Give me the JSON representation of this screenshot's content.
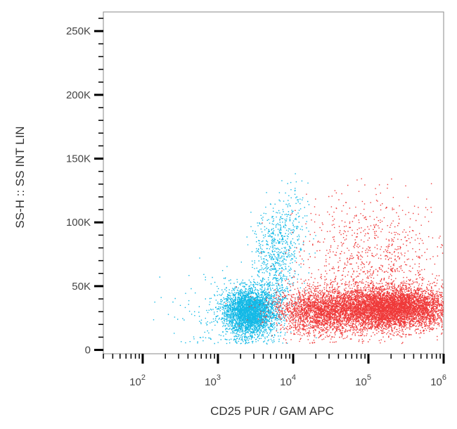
{
  "chart_data": {
    "type": "scatter",
    "title": "",
    "xlabel": "CD25 PUR / GAM APC",
    "ylabel": "SS-H :: SS INT LIN",
    "x_scale": "log",
    "xlim": [
      30,
      1000000
    ],
    "ylim": [
      -3000,
      265000
    ],
    "x_ticks": [
      {
        "value": 100,
        "base": "10",
        "exp": "2"
      },
      {
        "value": 1000,
        "base": "10",
        "exp": "3"
      },
      {
        "value": 10000,
        "base": "10",
        "exp": "4"
      },
      {
        "value": 100000,
        "base": "10",
        "exp": "5"
      },
      {
        "value": 1000000,
        "base": "10",
        "exp": "6"
      }
    ],
    "y_ticks": [
      {
        "value": 0,
        "label": "0"
      },
      {
        "value": 50000,
        "label": "50K"
      },
      {
        "value": 100000,
        "label": "100K"
      },
      {
        "value": 150000,
        "label": "150K"
      },
      {
        "value": 200000,
        "label": "200K"
      },
      {
        "value": 250000,
        "label": "250K"
      }
    ],
    "grid": false,
    "series": [
      {
        "color": "#13b9e6",
        "clusters": [
          {
            "log_x_center": 3.42,
            "y_center": 30000,
            "log_x_sd": 0.17,
            "y_sd": 9000,
            "count": 3400
          },
          {
            "log_x_center": 3.75,
            "y_center": 65000,
            "log_x_sd": 0.14,
            "y_sd": 22000,
            "count": 650
          },
          {
            "log_x_center": 3.95,
            "y_center": 95000,
            "log_x_sd": 0.12,
            "y_sd": 18000,
            "count": 180
          },
          {
            "log_x_center": 3.2,
            "y_center": 30000,
            "log_x_sd": 0.4,
            "y_sd": 15000,
            "count": 250
          }
        ]
      },
      {
        "color": "#ef3a3a",
        "clusters": [
          {
            "log_x_center": 5.1,
            "y_center": 32000,
            "log_x_sd": 0.55,
            "y_sd": 8500,
            "count": 5200
          },
          {
            "log_x_center": 5.4,
            "y_center": 35000,
            "log_x_sd": 0.3,
            "y_sd": 7000,
            "count": 1800
          },
          {
            "log_x_center": 4.3,
            "y_center": 30000,
            "log_x_sd": 0.25,
            "y_sd": 9000,
            "count": 1200
          },
          {
            "log_x_center": 5.1,
            "y_center": 70000,
            "log_x_sd": 0.5,
            "y_sd": 25000,
            "count": 900
          }
        ]
      }
    ]
  }
}
